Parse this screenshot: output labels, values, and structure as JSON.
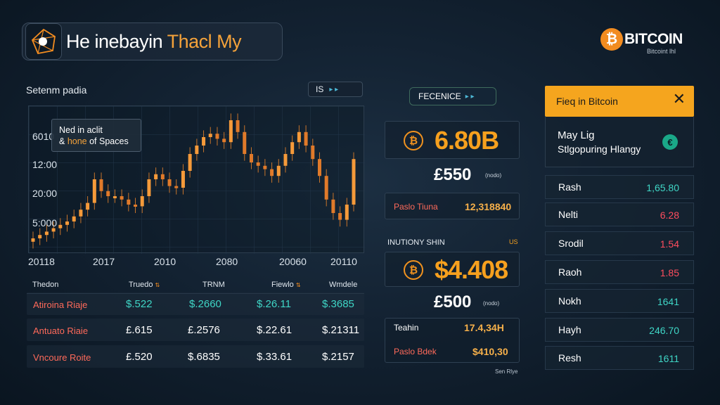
{
  "header": {
    "title_white": "He inebayin ",
    "title_orange": "Thacl My",
    "brand_coin": "₿",
    "brand_name": "BITCOIN",
    "brand_sub": "Bitcoint lhl"
  },
  "chart": {
    "panel_label": "Setenm padia",
    "control_label": "IS",
    "tooltip_line1": "Ned in aclit",
    "tooltip_line2_prefix": "& ",
    "tooltip_line2_orange": "hone",
    "tooltip_line2_suffix": " of Spaces",
    "y_ticks": [
      "6010",
      "12:00",
      "20:00",
      "5:000"
    ],
    "x_ticks": [
      "20118",
      "2017",
      "2010",
      "2080",
      "20060",
      "20110"
    ]
  },
  "chart_data": {
    "type": "line",
    "x_labels": [
      "20118",
      "2017",
      "2010",
      "2080",
      "20060",
      "20110"
    ],
    "y_labels": [
      "6010",
      "12:00",
      "20:00",
      "5:000"
    ],
    "series": [
      {
        "values": [
          5,
          7,
          9,
          11,
          13,
          15,
          18,
          22,
          26,
          40,
          33,
          30,
          30,
          28,
          25,
          24,
          30,
          40,
          43,
          40,
          36,
          35,
          45,
          55,
          60,
          65,
          67,
          64,
          62,
          75,
          68,
          55,
          50,
          48,
          46,
          42,
          48,
          55,
          62,
          68,
          60,
          52,
          42,
          28,
          20,
          16,
          25,
          52
        ]
      }
    ]
  },
  "table": {
    "headers": [
      "Thedon",
      "Truedo",
      "TRNM",
      "Fiewlo",
      "Wmdele"
    ],
    "rows": [
      {
        "name": "Atiroina Riaje",
        "c1": "$.522",
        "c2": "$.2660",
        "c3": "$.26.11",
        "c4": "$.3685",
        "teal": true
      },
      {
        "name": "Antuato Riaie",
        "c1": "£.615",
        "c2": "£.2576",
        "c3": "$.22.61",
        "c4": "$.21311",
        "teal": false
      },
      {
        "name": "Vncoure Roite",
        "c1": "£.520",
        "c2": "$.6835",
        "c3": "$.33.61",
        "c4": "$.2157",
        "teal": false
      }
    ]
  },
  "middle": {
    "ref_label": "FECENICE",
    "price1": "6.80B",
    "price1_icon": "₿",
    "sub1": "£550",
    "sub1_note": "(nodo)",
    "pair1_label": "Paslo Tiuna",
    "pair1_value": "12,318840",
    "section_label": "INUTIONY SHIN",
    "section_tag": "US",
    "price2": "$4.408",
    "price2_icon": "₿",
    "sub2": "£500",
    "sub2_note": "(nodo)",
    "pair2a_label": "Teahin",
    "pair2a_value": "17.4,34H",
    "pair2b_label": "Paslo Bdek",
    "pair2b_value": "$410,30",
    "footer": "Sen Rlye"
  },
  "news": {
    "header": "Fieq in Bitcoin",
    "line1": "May Lig",
    "line2": "Stlgopuring Hlangy",
    "icon": "€"
  },
  "tickers": [
    {
      "name": "Rash",
      "value": "1,65.80",
      "color": "teal"
    },
    {
      "name": "Nelti",
      "value": "6.28",
      "color": "red"
    },
    {
      "name": "Srodil",
      "value": "1.54",
      "color": "red"
    },
    {
      "name": "Raoh",
      "value": "1.85",
      "color": "red"
    },
    {
      "name": "Nokh",
      "value": "1641",
      "color": "teal"
    },
    {
      "name": "Hayh",
      "value": "246.70",
      "color": "teal"
    },
    {
      "name": "Resh",
      "value": "1611",
      "color": "teal"
    }
  ]
}
